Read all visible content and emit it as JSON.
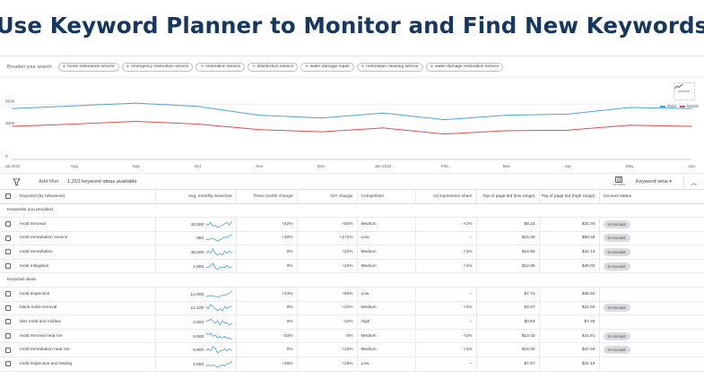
{
  "banner": {
    "title": "Use Keyword Planner to Monitor and Find New Keywords"
  },
  "broaden": {
    "label": "Broaden your search:",
    "chips": [
      "home restoration service",
      "emergency restoration service",
      "restoration service",
      "disinfection service",
      "water damage repair",
      "restoration cleaning service",
      "water damage restoration service"
    ]
  },
  "chart": {
    "expand_label": "EXPAND",
    "legend": [
      {
        "name": "Total",
        "color": "#4da3d9"
      },
      {
        "name": "Mobile",
        "color": "#d9534f"
      }
    ],
    "y_ticks": [
      "500K",
      "300K",
      "0"
    ],
    "x_ticks": [
      "Jul 2021",
      "Aug",
      "Sep",
      "Oct",
      "Nov",
      "Dec",
      "Jan 2022",
      "Feb",
      "Mar",
      "Apr",
      "May",
      "Jun"
    ]
  },
  "chart_data": {
    "type": "line",
    "categories": [
      "Jul 2021",
      "Aug",
      "Sep",
      "Oct",
      "Nov",
      "Dec",
      "Jan 2022",
      "Feb",
      "Mar",
      "Apr",
      "May",
      "Jun"
    ],
    "ylim": [
      0,
      600000
    ],
    "series": [
      {
        "name": "Total",
        "color": "#4da3d9",
        "values": [
          460000,
          485000,
          510000,
          480000,
          400000,
          375000,
          420000,
          360000,
          400000,
          410000,
          470000,
          460000
        ]
      },
      {
        "name": "Mobile",
        "color": "#d9534f",
        "values": [
          300000,
          320000,
          345000,
          320000,
          270000,
          250000,
          285000,
          230000,
          260000,
          265000,
          310000,
          300000
        ]
      }
    ]
  },
  "toolbar": {
    "add_filter": "Add filter",
    "count": "1,210 keyword ideas available",
    "columns": "COLUMNS",
    "keyword_view": "Keyword view"
  },
  "columns": [
    "Keyword (by relevance)",
    "Avg. monthly searches",
    "Three month change",
    "YoY change",
    "Competition",
    "Ad impression share",
    "Top of page bid (low range)",
    "Top of page bid (high range)",
    "Account status"
  ],
  "groups": [
    {
      "title": "Keywords you provided",
      "rows": [
        {
          "keyword": "mold removal",
          "searches": "40,500",
          "three": "+22%",
          "yoy": "+50%",
          "comp": "Medium",
          "share": "<1%",
          "low": "$8.22",
          "high": "$32.34",
          "status": "In Account",
          "spark": [
            5,
            4,
            6,
            3,
            4,
            2,
            3,
            4,
            5,
            6,
            4,
            7
          ]
        },
        {
          "keyword": "mold remediation service",
          "searches": "880",
          "three": "+30%",
          "yoy": "+171%",
          "comp": "Low",
          "share": "–",
          "low": "$15.00",
          "high": "$58.46",
          "status": "In Account",
          "spark": [
            3,
            3,
            4,
            4,
            3,
            2,
            3,
            4,
            5,
            5,
            6,
            7
          ]
        },
        {
          "keyword": "mold remediation",
          "searches": "40,500",
          "three": "0%",
          "yoy": "+22%",
          "comp": "Medium",
          "share": "<1%",
          "low": "$14.56",
          "high": "$42.14",
          "status": "In Account",
          "spark": [
            4,
            5,
            4,
            6,
            4,
            3,
            4,
            3,
            5,
            4,
            5,
            4
          ]
        },
        {
          "keyword": "mold mitigation",
          "searches": "1,900",
          "three": "0%",
          "yoy": "+22%",
          "comp": "Medium",
          "share": "<1%",
          "low": "$12.06",
          "high": "$40.00",
          "status": "In Account",
          "spark": [
            4,
            4,
            5,
            6,
            4,
            3,
            4,
            4,
            4,
            5,
            4,
            4
          ]
        }
      ]
    },
    {
      "title": "Keyword ideas",
      "rows": [
        {
          "keyword": "mold inspection",
          "searches": "14,800",
          "three": "+23%",
          "yoy": "+50%",
          "comp": "Low",
          "share": "–",
          "low": "$7.71",
          "high": "$35.50",
          "status": "",
          "spark": [
            3,
            3,
            4,
            3,
            3,
            2,
            3,
            4,
            4,
            5,
            6,
            8
          ]
        },
        {
          "keyword": "black mold removal",
          "searches": "12,100",
          "three": "0%",
          "yoy": "+22%",
          "comp": "Medium",
          "share": "<1%",
          "low": "$4.07",
          "high": "$21.94",
          "status": "In Account",
          "spark": [
            5,
            4,
            6,
            5,
            4,
            3,
            4,
            3,
            5,
            4,
            5,
            5
          ]
        },
        {
          "keyword": "tiles mold and mildew",
          "searches": "3,600",
          "three": "0%",
          "yoy": "-34%",
          "comp": "High",
          "share": "–",
          "low": "$0.64",
          "high": "$7.48",
          "status": "",
          "spark": [
            5,
            5,
            6,
            5,
            4,
            5,
            3,
            5,
            4,
            4,
            3,
            4
          ]
        },
        {
          "keyword": "mold removal near me",
          "searches": "9,900",
          "three": "-33%",
          "yoy": "0%",
          "comp": "Medium",
          "share": "<1%",
          "low": "$13.02",
          "high": "$41.81",
          "status": "In Account",
          "spark": [
            6,
            5,
            6,
            4,
            5,
            3,
            4,
            3,
            4,
            3,
            3,
            2
          ]
        },
        {
          "keyword": "mold remediation near me",
          "searches": "9,900",
          "three": "0%",
          "yoy": "+22%",
          "comp": "Medium",
          "share": "<1%",
          "low": "$15.00",
          "high": "$47.94",
          "status": "In Account",
          "spark": [
            4,
            5,
            4,
            6,
            5,
            3,
            4,
            4,
            5,
            4,
            5,
            4
          ]
        },
        {
          "keyword": "mold inspection and testing",
          "searches": "1,900",
          "three": "+26%",
          "yoy": "+26%",
          "comp": "Low",
          "share": "–",
          "low": "$7.57",
          "high": "$31.19",
          "status": "",
          "spark": [
            3,
            4,
            3,
            4,
            3,
            2,
            3,
            4,
            3,
            5,
            5,
            7
          ]
        }
      ]
    }
  ]
}
